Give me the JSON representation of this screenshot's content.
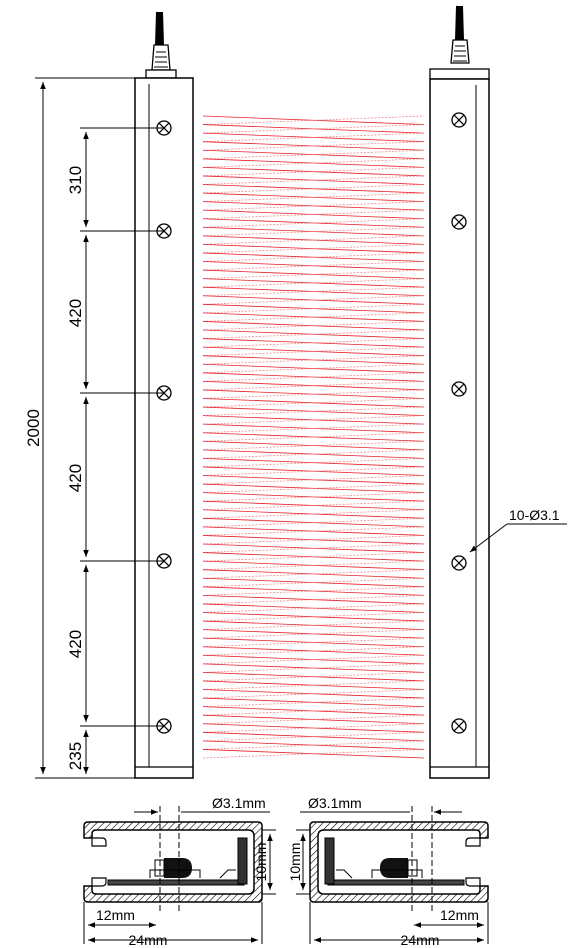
{
  "diagram": {
    "total_height_label": "2000",
    "pitch_labels": [
      "310",
      "420",
      "420",
      "420",
      "235"
    ],
    "hole_callout": "10-Ø3.1",
    "section_left": {
      "hole_label": "Ø3.1mm",
      "height_label": "10mm",
      "inner_width_label": "12mm",
      "width_label": "24mm"
    },
    "section_right": {
      "hole_label": "Ø3.1mm",
      "height_label": "10mm",
      "inner_width_label": "12mm",
      "width_label": "24mm"
    },
    "colors": {
      "line": "#000000",
      "beam_solid": "#e8202a",
      "beam_dotted": "#f08a8e",
      "housing": "#ffffff"
    },
    "beam_count": 76,
    "icons": [
      "mount-hole-icon",
      "cable-gland-icon",
      "arrow-icon"
    ]
  }
}
